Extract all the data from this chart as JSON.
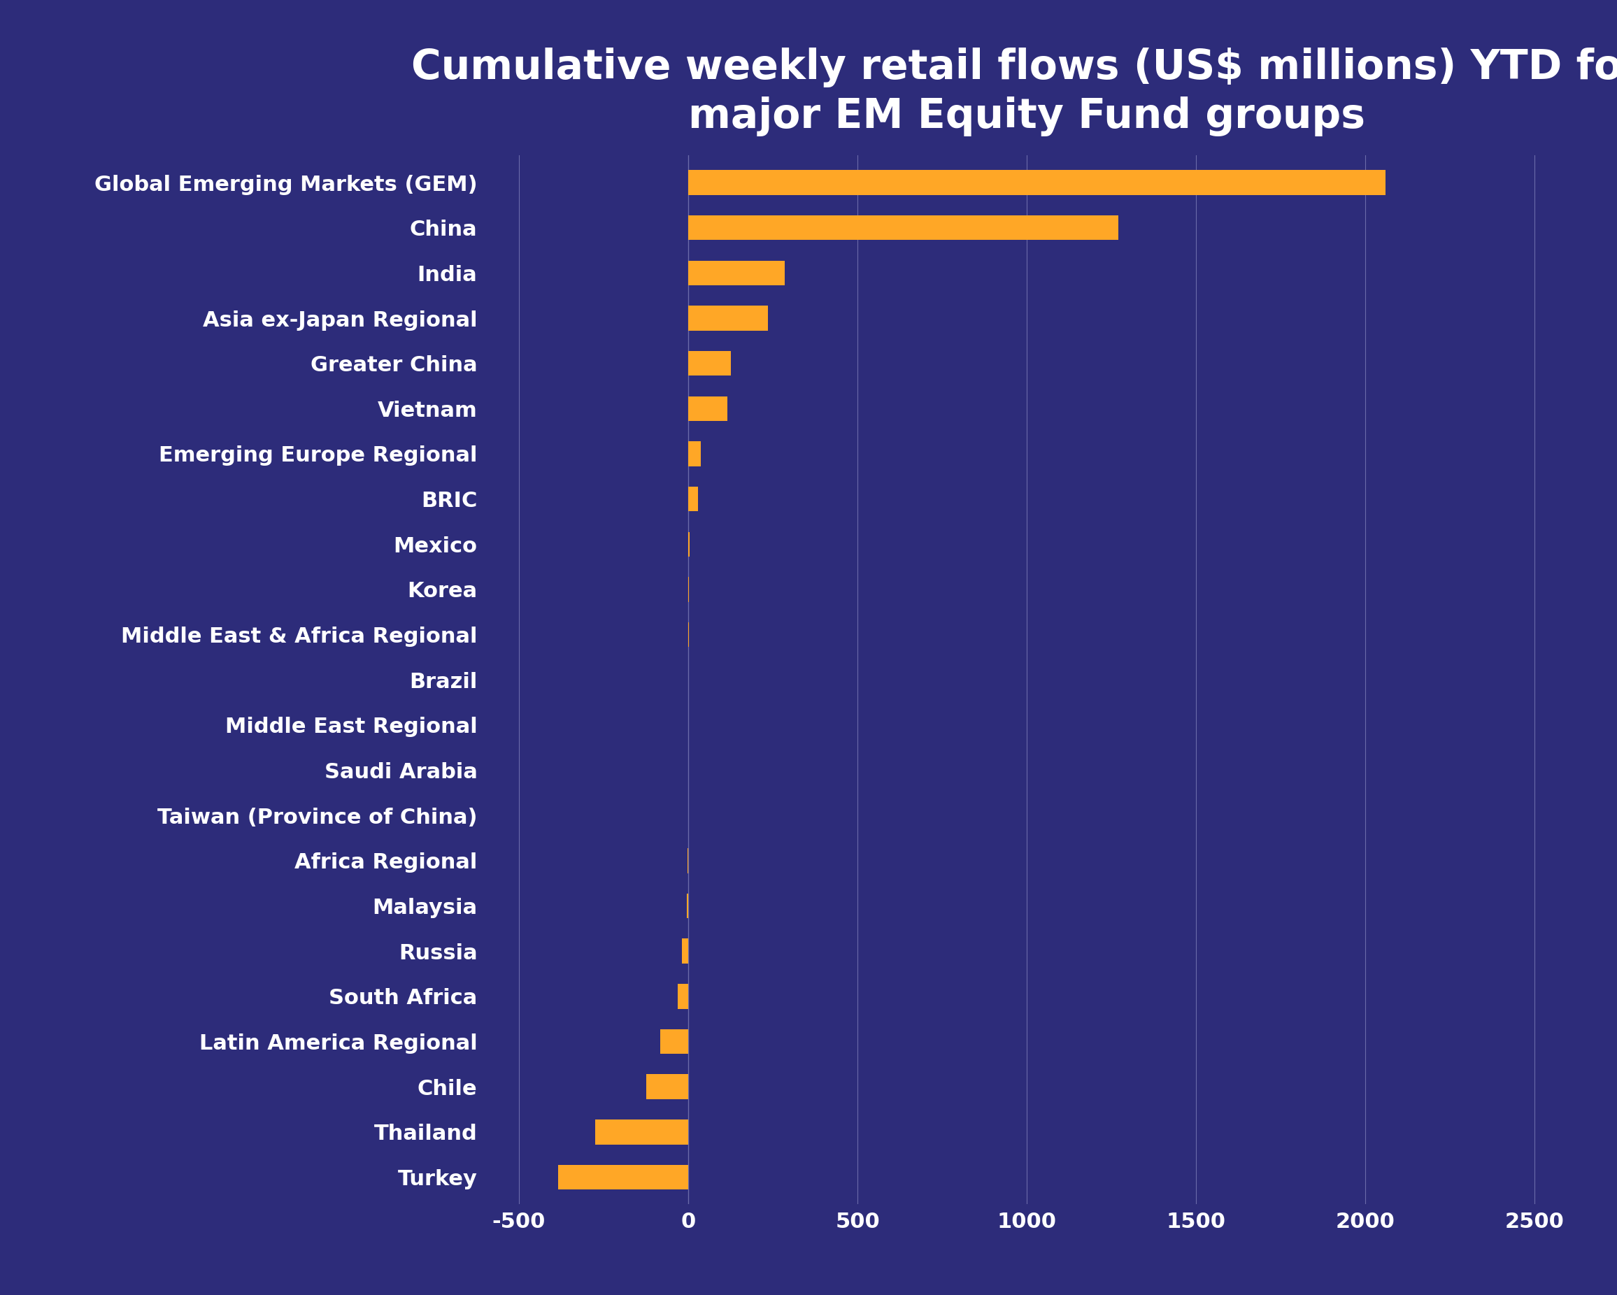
{
  "title": "Cumulative weekly retail flows (US$ millions) YTD for\nmajor EM Equity Fund groups",
  "categories": [
    "Global Emerging Markets (GEM)",
    "China",
    "India",
    "Asia ex-Japan Regional",
    "Greater China",
    "Vietnam",
    "Emerging Europe Regional",
    "BRIC",
    "Mexico",
    "Korea",
    "Middle East & Africa Regional",
    "Brazil",
    "Middle East Regional",
    "Saudi Arabia",
    "Taiwan (Province of China)",
    "Africa Regional",
    "Malaysia",
    "Russia",
    "South Africa",
    "Latin America Regional",
    "Chile",
    "Thailand",
    "Turkey"
  ],
  "values": [
    2060,
    1270,
    285,
    235,
    125,
    115,
    38,
    28,
    4,
    2,
    1,
    0.5,
    0.5,
    0,
    -1,
    -2,
    -4,
    -18,
    -32,
    -82,
    -125,
    -275,
    -385
  ],
  "bar_color": "#FFA726",
  "background_color": "#2D2C7A",
  "text_color": "#FFFFFF",
  "grid_color": "#6B6BAA",
  "title_fontsize": 42,
  "label_fontsize": 22,
  "tick_fontsize": 22,
  "xlim": [
    -600,
    2600
  ],
  "xticks": [
    -500,
    0,
    500,
    1000,
    1500,
    2000,
    2500
  ],
  "xtick_labels": [
    "-500",
    "0",
    "500",
    "1000",
    "1500",
    "2000",
    "2500"
  ]
}
